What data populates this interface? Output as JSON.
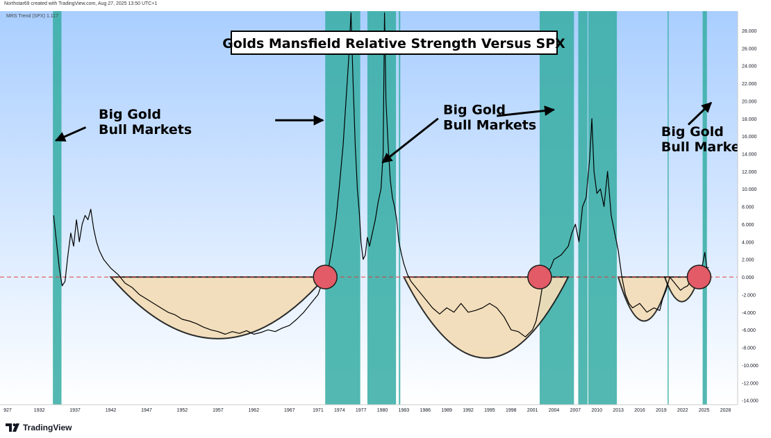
{
  "header": {
    "credit": "Northstar69 created with TradingView.com, Aug 27, 2025 13:50 UTC+1",
    "indicator": "MRS Trend (SPX)  1.117"
  },
  "brand": {
    "name": "TradingView",
    "logo_icon": "tradingview-logo-icon"
  },
  "colors": {
    "bull_band": "#3aaea6",
    "base_fill": "#f3ddb7",
    "circle": "#e25b66",
    "zero_line": "#e03c3c",
    "line": "#000000"
  },
  "chart_data": {
    "type": "line",
    "title": "Golds Mansfield Relative Strength Versus SPX",
    "xlabel": "",
    "ylabel": "",
    "xlim": [
      1926.5,
      2029.7
    ],
    "ylim": [
      -14.5,
      30.2
    ],
    "x_ticks": [
      "927",
      "1932",
      "1937",
      "1942",
      "1947",
      "1952",
      "1957",
      "1962",
      "1967",
      "1971",
      "1974",
      "1977",
      "1980",
      "1983",
      "1986",
      "1989",
      "1992",
      "1995",
      "1998",
      "2001",
      "2004",
      "2007",
      "2010",
      "2013",
      "2016",
      "2019",
      "2022",
      "2025",
      "2028"
    ],
    "x_tick_positions": [
      1927,
      1932,
      1937,
      1942,
      1947,
      1952,
      1957,
      1962,
      1967,
      1971,
      1974,
      1977,
      1980,
      1983,
      1986,
      1989,
      1992,
      1995,
      1998,
      2001,
      2004,
      2007,
      2010,
      2013,
      2016,
      2019,
      2022,
      2025,
      2028
    ],
    "y_ticks": [
      "28.000",
      "26.000",
      "24.000",
      "22.000",
      "20.000",
      "18.000",
      "16.000",
      "14.000",
      "12.000",
      "10.000",
      "8.000",
      "6.000",
      "4.000",
      "2.000",
      "0.000",
      "-2.000",
      "-4.000",
      "-6.000",
      "-8.000",
      "-10.000",
      "-12.000",
      "-14.000"
    ],
    "y_tick_values": [
      28,
      26,
      24,
      22,
      20,
      18,
      16,
      14,
      12,
      10,
      8,
      6,
      4,
      2,
      0,
      -2,
      -4,
      -6,
      -8,
      -10,
      -12,
      -14
    ],
    "reference_line": {
      "value": 0,
      "style": "dashed",
      "label": "zero line"
    },
    "series": [
      {
        "name": "MRS Trend (SPX)",
        "points": [
          [
            1934.0,
            7.0
          ],
          [
            1934.4,
            4.0
          ],
          [
            1934.8,
            1.0
          ],
          [
            1935.2,
            -1.0
          ],
          [
            1935.6,
            -0.5
          ],
          [
            1936.0,
            2.5
          ],
          [
            1936.4,
            5.0
          ],
          [
            1936.8,
            3.5
          ],
          [
            1937.2,
            6.5
          ],
          [
            1937.6,
            4.0
          ],
          [
            1938.0,
            6.0
          ],
          [
            1938.4,
            7.0
          ],
          [
            1938.8,
            6.5
          ],
          [
            1939.2,
            7.7
          ],
          [
            1939.6,
            5.5
          ],
          [
            1940.0,
            4.0
          ],
          [
            1940.4,
            3.0
          ],
          [
            1941.0,
            2.0
          ],
          [
            1942.0,
            1.0
          ],
          [
            1943.0,
            0.3
          ],
          [
            1944.0,
            -0.7
          ],
          [
            1945.0,
            -1.2
          ],
          [
            1946.0,
            -2.0
          ],
          [
            1947.0,
            -2.5
          ],
          [
            1948.0,
            -3.0
          ],
          [
            1949.0,
            -3.5
          ],
          [
            1950.0,
            -4.0
          ],
          [
            1951.0,
            -4.3
          ],
          [
            1952.0,
            -4.8
          ],
          [
            1953.0,
            -5.0
          ],
          [
            1954.0,
            -5.3
          ],
          [
            1955.0,
            -5.7
          ],
          [
            1956.0,
            -6.0
          ],
          [
            1957.0,
            -6.2
          ],
          [
            1958.0,
            -6.5
          ],
          [
            1959.0,
            -6.2
          ],
          [
            1960.0,
            -6.4
          ],
          [
            1961.0,
            -6.1
          ],
          [
            1962.0,
            -6.5
          ],
          [
            1963.0,
            -6.3
          ],
          [
            1964.0,
            -6.0
          ],
          [
            1965.0,
            -6.2
          ],
          [
            1966.0,
            -5.8
          ],
          [
            1967.0,
            -5.5
          ],
          [
            1968.0,
            -4.8
          ],
          [
            1969.0,
            -4.0
          ],
          [
            1970.0,
            -3.0
          ],
          [
            1971.0,
            -2.0
          ],
          [
            1971.5,
            -0.8
          ],
          [
            1972.0,
            0.2
          ],
          [
            1972.5,
            1.2
          ],
          [
            1973.0,
            3.5
          ],
          [
            1973.5,
            6.5
          ],
          [
            1974.0,
            10.5
          ],
          [
            1974.5,
            15.0
          ],
          [
            1974.9,
            20.0
          ],
          [
            1975.3,
            25.0
          ],
          [
            1975.6,
            30.0
          ],
          [
            1975.9,
            22.0
          ],
          [
            1976.2,
            15.0
          ],
          [
            1976.5,
            10.0
          ],
          [
            1976.8,
            7.0
          ],
          [
            1977.0,
            4.0
          ],
          [
            1977.3,
            2.0
          ],
          [
            1977.6,
            2.5
          ],
          [
            1977.9,
            4.5
          ],
          [
            1978.2,
            3.5
          ],
          [
            1978.6,
            5.0
          ],
          [
            1979.0,
            6.5
          ],
          [
            1979.4,
            8.5
          ],
          [
            1979.8,
            10.0
          ],
          [
            1980.1,
            14.0
          ],
          [
            1980.3,
            30.0
          ],
          [
            1980.5,
            20.0
          ],
          [
            1980.8,
            15.0
          ],
          [
            1981.1,
            11.0
          ],
          [
            1981.4,
            9.0
          ],
          [
            1981.7,
            8.0
          ],
          [
            1982.0,
            6.5
          ],
          [
            1982.3,
            4.0
          ],
          [
            1982.7,
            2.5
          ],
          [
            1983.0,
            1.5
          ],
          [
            1983.5,
            0.3
          ],
          [
            1984.0,
            -0.5
          ],
          [
            1985.0,
            -1.5
          ],
          [
            1986.0,
            -2.5
          ],
          [
            1987.0,
            -3.5
          ],
          [
            1988.0,
            -4.2
          ],
          [
            1989.0,
            -3.5
          ],
          [
            1990.0,
            -4.0
          ],
          [
            1991.0,
            -3.0
          ],
          [
            1992.0,
            -4.0
          ],
          [
            1993.0,
            -3.8
          ],
          [
            1994.0,
            -3.5
          ],
          [
            1995.0,
            -3.0
          ],
          [
            1996.0,
            -3.5
          ],
          [
            1997.0,
            -4.5
          ],
          [
            1998.0,
            -6.0
          ],
          [
            1999.0,
            -6.2
          ],
          [
            2000.0,
            -6.8
          ],
          [
            2001.0,
            -6.0
          ],
          [
            2001.5,
            -5.0
          ],
          [
            2002.0,
            -3.0
          ],
          [
            2002.5,
            -0.5
          ],
          [
            2003.0,
            0.5
          ],
          [
            2003.5,
            1.0
          ],
          [
            2004.0,
            2.0
          ],
          [
            2005.0,
            2.5
          ],
          [
            2006.0,
            3.5
          ],
          [
            2006.5,
            5.0
          ],
          [
            2007.0,
            6.0
          ],
          [
            2007.5,
            4.0
          ],
          [
            2008.0,
            8.0
          ],
          [
            2008.5,
            9.0
          ],
          [
            2009.0,
            13.5
          ],
          [
            2009.3,
            18.0
          ],
          [
            2009.6,
            12.0
          ],
          [
            2010.0,
            9.5
          ],
          [
            2010.5,
            10.0
          ],
          [
            2011.0,
            8.0
          ],
          [
            2011.5,
            12.0
          ],
          [
            2012.0,
            7.0
          ],
          [
            2012.5,
            5.0
          ],
          [
            2013.0,
            3.0
          ],
          [
            2013.5,
            0.0
          ],
          [
            2014.0,
            -2.0
          ],
          [
            2014.5,
            -3.0
          ],
          [
            2015.0,
            -3.5
          ],
          [
            2016.0,
            -3.0
          ],
          [
            2017.0,
            -4.0
          ],
          [
            2018.0,
            -3.5
          ],
          [
            2018.8,
            -3.8
          ],
          [
            2019.2,
            -2.5
          ],
          [
            2019.7,
            -1.5
          ],
          [
            2020.2,
            0.0
          ],
          [
            2020.7,
            -0.5
          ],
          [
            2021.2,
            -1.0
          ],
          [
            2021.7,
            -1.5
          ],
          [
            2022.2,
            -1.2
          ],
          [
            2022.7,
            -1.0
          ],
          [
            2023.2,
            -0.2
          ],
          [
            2023.6,
            0.3
          ],
          [
            2024.0,
            -0.2
          ],
          [
            2024.4,
            0.5
          ],
          [
            2024.8,
            1.5
          ],
          [
            2025.1,
            2.8
          ],
          [
            2025.4,
            1.0
          ],
          [
            2025.65,
            1.1
          ]
        ]
      }
    ],
    "bull_market_bands": [
      [
        1933.9,
        1935.1
      ],
      [
        1972.0,
        1976.9
      ],
      [
        1977.9,
        1981.9
      ],
      [
        1982.3,
        1982.5
      ],
      [
        2002.0,
        2006.8
      ],
      [
        2007.4,
        2008.7
      ],
      [
        2008.8,
        2012.8
      ],
      [
        2019.9,
        2020.0
      ],
      [
        2024.8,
        2025.4
      ]
    ],
    "rounded_bases": [
      {
        "from": 1942.0,
        "to": 1972.0,
        "bottom": -7.0
      },
      {
        "from": 1983.0,
        "to": 2006.0,
        "bottom": -9.2
      },
      {
        "from": 2013.0,
        "to": 2020.2,
        "bottom": -5.0
      },
      {
        "from": 2019.5,
        "to": 2024.3,
        "bottom": -2.8
      }
    ],
    "breakout_markers": [
      {
        "x": 1972.0,
        "y": 0.0
      },
      {
        "x": 2002.0,
        "y": 0.0
      },
      {
        "x": 2024.3,
        "y": 0.0
      }
    ],
    "annotations": [
      {
        "lines": [
          "Big Gold",
          "Bull Markets"
        ],
        "x": 1940.3,
        "y": 18.0,
        "arrows": [
          {
            "from": [
              1938.5,
              17.0
            ],
            "to": [
              1934.3,
              15.5
            ]
          },
          {
            "from": [
              1965.0,
              17.8
            ],
            "to": [
              1971.7,
              17.8
            ]
          }
        ]
      },
      {
        "lines": [
          "Big Gold",
          "Bull Markets"
        ],
        "x": 1988.5,
        "y": 18.5,
        "arrows": [
          {
            "from": [
              1987.8,
              18.0
            ],
            "to": [
              1980.0,
              13.0
            ]
          },
          {
            "from": [
              1996.0,
              18.3
            ],
            "to": [
              2004.0,
              19.0
            ]
          }
        ]
      },
      {
        "lines": [
          "Big Gold",
          "Bull Market"
        ],
        "x": 2019.0,
        "y": 16.0,
        "arrows": [
          {
            "from": [
              2022.8,
              17.3
            ],
            "to": [
              2026.0,
              19.8
            ]
          }
        ]
      }
    ]
  }
}
